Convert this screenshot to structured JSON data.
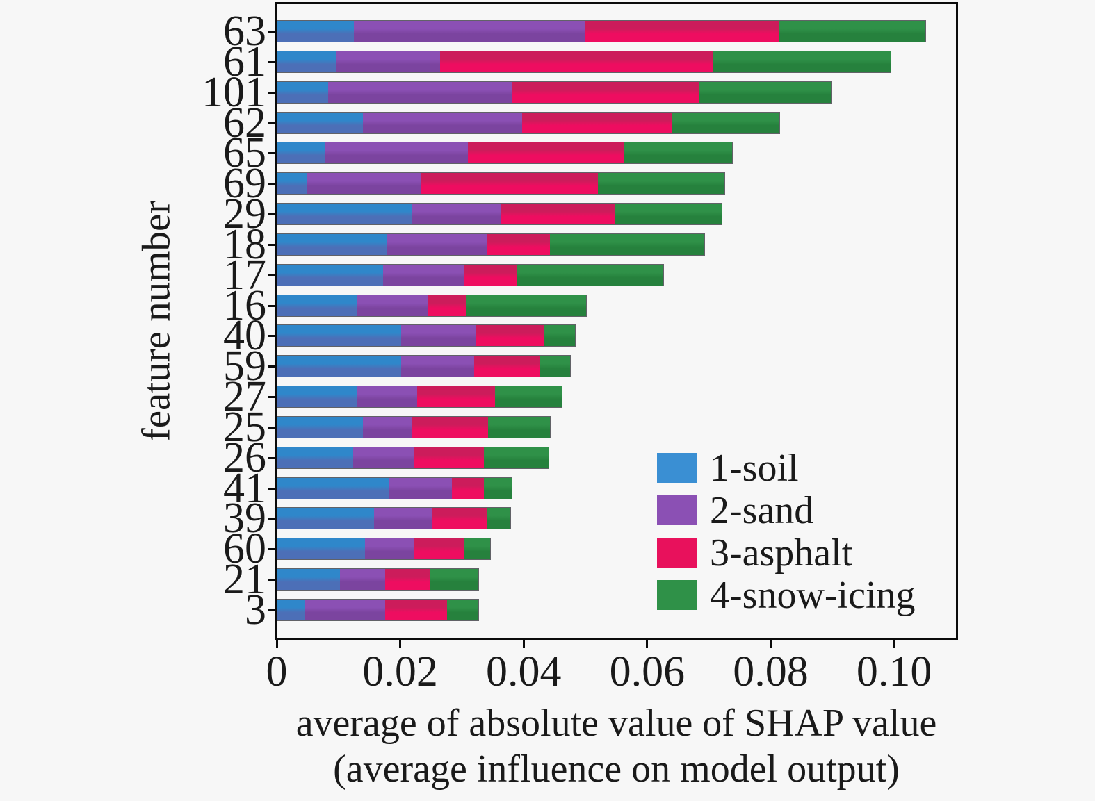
{
  "figure": {
    "background": "#f7f7f7",
    "axis_color": "#0b0b0b",
    "text_color": "#1a1a1a"
  },
  "chart_data": {
    "type": "bar",
    "subtype": "horizontal-stacked",
    "title": "",
    "ylabel": "feature number",
    "xlabel_line1": "average of absolute value of SHAP value",
    "xlabel_line2": "(average influence on model output)",
    "categories": [
      "63",
      "61",
      "101",
      "62",
      "65",
      "69",
      "29",
      "18",
      "17",
      "16",
      "40",
      "59",
      "27",
      "25",
      "26",
      "41",
      "39",
      "60",
      "21",
      "3"
    ],
    "series": [
      {
        "name": "1-soil",
        "color_top": "#2f87ca",
        "color_bottom": "#4c6fb7",
        "legend_color": "#3a8fd3",
        "values": [
          0.0125,
          0.0097,
          0.0083,
          0.014,
          0.0079,
          0.005,
          0.0219,
          0.0178,
          0.0172,
          0.013,
          0.0201,
          0.0201,
          0.013,
          0.014,
          0.0124,
          0.0181,
          0.0158,
          0.0143,
          0.0103,
          0.0046
        ]
      },
      {
        "name": "2-sand",
        "color_top": "#8b50b4",
        "color_bottom": "#7b449f",
        "legend_color": "#8b50b4",
        "values": [
          0.0374,
          0.0168,
          0.0297,
          0.0258,
          0.0231,
          0.0184,
          0.0145,
          0.0163,
          0.0132,
          0.0116,
          0.0122,
          0.0119,
          0.0098,
          0.0079,
          0.0098,
          0.0103,
          0.0094,
          0.008,
          0.0073,
          0.013
        ]
      },
      {
        "name": "3-asphalt",
        "color_top": "#cc1c5b",
        "color_bottom": "#ee0d60",
        "legend_color": "#e8115c",
        "values": [
          0.0315,
          0.0442,
          0.0305,
          0.0241,
          0.0252,
          0.0286,
          0.0184,
          0.0101,
          0.0084,
          0.006,
          0.0111,
          0.0107,
          0.0125,
          0.0123,
          0.0114,
          0.0052,
          0.0088,
          0.0081,
          0.0073,
          0.01
        ]
      },
      {
        "name": "4-snow-icing",
        "color_top": "#2f9148",
        "color_bottom": "#26813d",
        "legend_color": "#2f9148",
        "values": [
          0.0237,
          0.0287,
          0.0212,
          0.0175,
          0.0175,
          0.0205,
          0.0173,
          0.025,
          0.0238,
          0.0195,
          0.0049,
          0.0048,
          0.0109,
          0.01,
          0.0104,
          0.0045,
          0.0038,
          0.0042,
          0.0078,
          0.0051
        ]
      }
    ],
    "totals": [
      0.1051,
      0.0994,
      0.0897,
      0.0814,
      0.0737,
      0.0725,
      0.0721,
      0.0692,
      0.0626,
      0.0501,
      0.0483,
      0.0475,
      0.0462,
      0.0442,
      0.044,
      0.0381,
      0.0378,
      0.0346,
      0.0327,
      0.0327
    ],
    "xlim": [
      0,
      0.11
    ],
    "xticks": [
      {
        "value": 0.0,
        "label": "0"
      },
      {
        "value": 0.02,
        "label": "0.02"
      },
      {
        "value": 0.04,
        "label": "0.04"
      },
      {
        "value": 0.06,
        "label": "0.06"
      },
      {
        "value": 0.08,
        "label": "0.08"
      },
      {
        "value": 0.1,
        "label": "0.10"
      }
    ],
    "grid": false,
    "legend_position": "inside-lower-right"
  }
}
